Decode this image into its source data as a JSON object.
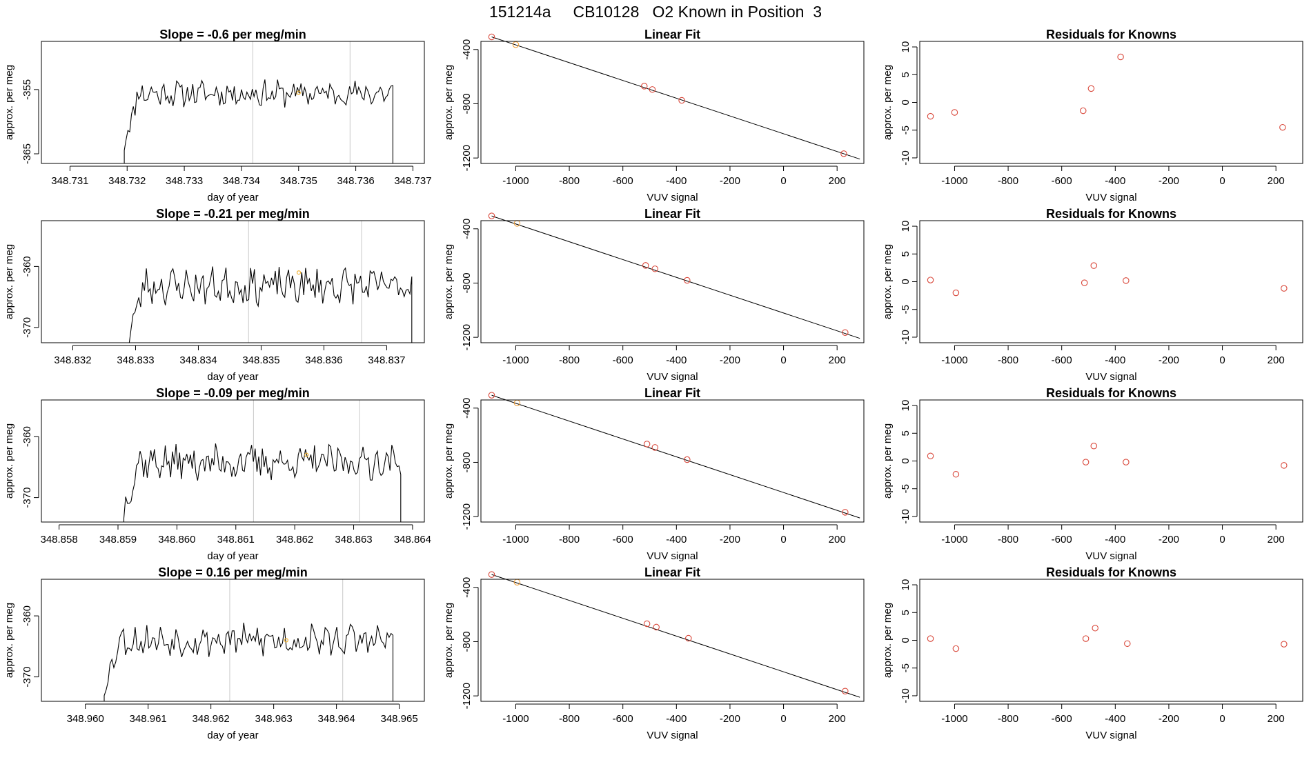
{
  "figure": {
    "title": "151214a     CB10128   O2 Known in Position  3"
  },
  "chart_data": [
    {
      "type": "line",
      "row": 1,
      "panel": "time-series",
      "title": "Slope =  -0.6  per meg/min",
      "xlabel": "day of year",
      "ylabel": "approx. per meg",
      "xlim": [
        348.7305,
        348.7372
      ],
      "ylim": [
        -366.5,
        -347.5
      ],
      "xticks": [
        348.731,
        348.732,
        348.733,
        348.734,
        348.735,
        348.736,
        348.737
      ],
      "xtick_labels": [
        "348.731",
        "348.732",
        "348.733",
        "348.734",
        "348.735",
        "348.736",
        "348.737"
      ],
      "yticks": [
        -355,
        -365
      ],
      "ytick_labels": [
        "-355",
        "-365"
      ],
      "vlines": [
        348.7342,
        348.7359
      ],
      "highlight_point": {
        "x": 348.735,
        "y": -355.5
      },
      "series": [
        {
          "start": 348.73195,
          "end": 348.73665,
          "n": 150,
          "baseline": -355.6,
          "noise": 1.7,
          "seed": 11
        }
      ]
    },
    {
      "type": "scatter",
      "row": 1,
      "panel": "linear-fit",
      "title": "Linear Fit",
      "xlabel": "VUV signal",
      "ylabel": "approx. per meg",
      "xlim": [
        -1130,
        300
      ],
      "ylim": [
        -1240,
        -340
      ],
      "xticks": [
        -1000,
        -800,
        -600,
        -400,
        -200,
        0,
        200
      ],
      "xtick_labels": [
        "-1000",
        "-800",
        "-600",
        "-400",
        "-200",
        "0",
        "200"
      ],
      "yticks": [
        -400,
        -800,
        -1200
      ],
      "ytick_labels": [
        "-400",
        "-800",
        "-1200"
      ],
      "fit_line": {
        "x1": -1090,
        "y1": -307,
        "x2": 285,
        "y2": -1208
      },
      "points": [
        {
          "x": -1090,
          "y": -307,
          "color": "red"
        },
        {
          "x": -1000,
          "y": -364,
          "color": "orange"
        },
        {
          "x": -520,
          "y": -670,
          "color": "red"
        },
        {
          "x": -490,
          "y": -695,
          "color": "red"
        },
        {
          "x": -380,
          "y": -775,
          "color": "red"
        },
        {
          "x": 225,
          "y": -1168,
          "color": "red"
        }
      ]
    },
    {
      "type": "scatter",
      "row": 1,
      "panel": "residuals",
      "title": "Residuals for Knowns",
      "xlabel": "VUV signal",
      "ylabel": "approx. per meg",
      "xlim": [
        -1130,
        300
      ],
      "ylim": [
        -11,
        11
      ],
      "xticks": [
        -1000,
        -800,
        -600,
        -400,
        -200,
        0,
        200
      ],
      "xtick_labels": [
        "-1000",
        "-800",
        "-600",
        "-400",
        "-200",
        "0",
        "200"
      ],
      "yticks": [
        10,
        5,
        0,
        -5,
        -10
      ],
      "ytick_labels": [
        "10",
        "5",
        "0",
        "-5",
        "-10"
      ],
      "points": [
        {
          "x": -1090,
          "y": -2.5
        },
        {
          "x": -1000,
          "y": -1.8
        },
        {
          "x": -520,
          "y": -1.5
        },
        {
          "x": -490,
          "y": 2.5
        },
        {
          "x": -380,
          "y": 8.2
        },
        {
          "x": 225,
          "y": -4.5
        }
      ]
    },
    {
      "type": "line",
      "row": 2,
      "panel": "time-series",
      "title": "Slope =  -0.21  per meg/min",
      "xlabel": "day of year",
      "ylabel": "approx. per meg",
      "xlim": [
        348.8315,
        348.8376
      ],
      "ylim": [
        -372.5,
        -352.5
      ],
      "xticks": [
        348.832,
        348.833,
        348.834,
        348.835,
        348.836,
        348.837
      ],
      "xtick_labels": [
        "348.832",
        "348.833",
        "348.834",
        "348.835",
        "348.836",
        "348.837"
      ],
      "yticks": [
        -360,
        -370
      ],
      "ytick_labels": [
        "-360",
        "-370"
      ],
      "vlines": [
        348.8348,
        348.8366
      ],
      "highlight_point": {
        "x": 348.8356,
        "y": -361
      },
      "series": [
        {
          "start": 348.8329,
          "end": 348.8374,
          "n": 150,
          "baseline": -363.2,
          "noise": 2.5,
          "seed": 23
        }
      ]
    },
    {
      "type": "scatter",
      "row": 2,
      "panel": "linear-fit",
      "title": "Linear Fit",
      "xlabel": "VUV signal",
      "ylabel": "approx. per meg",
      "xlim": [
        -1130,
        300
      ],
      "ylim": [
        -1240,
        -340
      ],
      "xticks": [
        -1000,
        -800,
        -600,
        -400,
        -200,
        0,
        200
      ],
      "xtick_labels": [
        "-1000",
        "-800",
        "-600",
        "-400",
        "-200",
        "0",
        "200"
      ],
      "yticks": [
        -400,
        -800,
        -1200
      ],
      "ytick_labels": [
        "-400",
        "-800",
        "-1200"
      ],
      "fit_line": {
        "x1": -1090,
        "y1": -305,
        "x2": 285,
        "y2": -1208
      },
      "points": [
        {
          "x": -1090,
          "y": -305,
          "color": "red"
        },
        {
          "x": -995,
          "y": -360,
          "color": "orange"
        },
        {
          "x": -515,
          "y": -670,
          "color": "red"
        },
        {
          "x": -480,
          "y": -695,
          "color": "red"
        },
        {
          "x": -360,
          "y": -780,
          "color": "red"
        },
        {
          "x": 230,
          "y": -1165,
          "color": "red"
        }
      ]
    },
    {
      "type": "scatter",
      "row": 2,
      "panel": "residuals",
      "title": "Residuals for Knowns",
      "xlabel": "VUV signal",
      "ylabel": "approx. per meg",
      "xlim": [
        -1130,
        300
      ],
      "ylim": [
        -11,
        11
      ],
      "xticks": [
        -1000,
        -800,
        -600,
        -400,
        -200,
        0,
        200
      ],
      "xtick_labels": [
        "-1000",
        "-800",
        "-600",
        "-400",
        "-200",
        "0",
        "200"
      ],
      "yticks": [
        10,
        5,
        0,
        -5,
        -10
      ],
      "ytick_labels": [
        "10",
        "5",
        "0",
        "-5",
        "-10"
      ],
      "points": [
        {
          "x": -1090,
          "y": 0.3
        },
        {
          "x": -995,
          "y": -2.0
        },
        {
          "x": -515,
          "y": -0.2
        },
        {
          "x": -480,
          "y": 2.9
        },
        {
          "x": -360,
          "y": 0.2
        },
        {
          "x": 230,
          "y": -1.2
        }
      ]
    },
    {
      "type": "line",
      "row": 3,
      "panel": "time-series",
      "title": "Slope =  -0.09  per meg/min",
      "xlabel": "day of year",
      "ylabel": "approx. per meg",
      "xlim": [
        348.8577,
        348.8642
      ],
      "ylim": [
        -374,
        -354
      ],
      "xticks": [
        348.858,
        348.859,
        348.86,
        348.861,
        348.862,
        348.863,
        348.864
      ],
      "xtick_labels": [
        "348.858",
        "348.859",
        "348.860",
        "348.861",
        "348.862",
        "348.863",
        "348.864"
      ],
      "yticks": [
        -360,
        -370
      ],
      "ytick_labels": [
        "-360",
        "-370"
      ],
      "vlines": [
        348.8613,
        348.8631
      ],
      "highlight_point": {
        "x": 348.8622,
        "y": -363
      },
      "series": [
        {
          "start": 348.8591,
          "end": 348.8638,
          "n": 155,
          "baseline": -364.2,
          "noise": 2.4,
          "seed": 37
        }
      ]
    },
    {
      "type": "scatter",
      "row": 3,
      "panel": "linear-fit",
      "title": "Linear Fit",
      "xlabel": "VUV signal",
      "ylabel": "approx. per meg",
      "xlim": [
        -1130,
        300
      ],
      "ylim": [
        -1240,
        -340
      ],
      "xticks": [
        -1000,
        -800,
        -600,
        -400,
        -200,
        0,
        200
      ],
      "xtick_labels": [
        "-1000",
        "-800",
        "-600",
        "-400",
        "-200",
        "0",
        "200"
      ],
      "yticks": [
        -400,
        -800,
        -1200
      ],
      "ytick_labels": [
        "-400",
        "-800",
        "-1200"
      ],
      "fit_line": {
        "x1": -1090,
        "y1": -305,
        "x2": 285,
        "y2": -1210
      },
      "points": [
        {
          "x": -1090,
          "y": -305,
          "color": "red"
        },
        {
          "x": -995,
          "y": -362,
          "color": "orange"
        },
        {
          "x": -510,
          "y": -665,
          "color": "red"
        },
        {
          "x": -480,
          "y": -690,
          "color": "red"
        },
        {
          "x": -360,
          "y": -780,
          "color": "red"
        },
        {
          "x": 230,
          "y": -1168,
          "color": "red"
        }
      ]
    },
    {
      "type": "scatter",
      "row": 3,
      "panel": "residuals",
      "title": "Residuals for Knowns",
      "xlabel": "VUV signal",
      "ylabel": "approx. per meg",
      "xlim": [
        -1130,
        300
      ],
      "ylim": [
        -11,
        11
      ],
      "xticks": [
        -1000,
        -800,
        -600,
        -400,
        -200,
        0,
        200
      ],
      "xtick_labels": [
        "-1000",
        "-800",
        "-600",
        "-400",
        "-200",
        "0",
        "200"
      ],
      "yticks": [
        10,
        5,
        0,
        -5,
        -10
      ],
      "ytick_labels": [
        "10",
        "5",
        "0",
        "-5",
        "-10"
      ],
      "points": [
        {
          "x": -1090,
          "y": 0.9
        },
        {
          "x": -995,
          "y": -2.4
        },
        {
          "x": -510,
          "y": -0.2
        },
        {
          "x": -480,
          "y": 2.7
        },
        {
          "x": -360,
          "y": -0.2
        },
        {
          "x": 230,
          "y": -0.8
        }
      ]
    },
    {
      "type": "line",
      "row": 4,
      "panel": "time-series",
      "title": "Slope =  0.16  per meg/min",
      "xlabel": "day of year",
      "ylabel": "approx. per meg",
      "xlim": [
        348.9593,
        348.9654
      ],
      "ylim": [
        -374,
        -354
      ],
      "xticks": [
        348.96,
        348.961,
        348.962,
        348.963,
        348.964,
        348.965
      ],
      "xtick_labels": [
        "348.960",
        "348.961",
        "348.962",
        "348.963",
        "348.964",
        "348.965"
      ],
      "yticks": [
        -360,
        -370
      ],
      "ytick_labels": [
        "-360",
        "-370"
      ],
      "vlines": [
        348.9623,
        348.9641
      ],
      "highlight_point": {
        "x": 348.9632,
        "y": -364
      },
      "series": [
        {
          "start": 348.9603,
          "end": 348.9649,
          "n": 150,
          "baseline": -364.0,
          "noise": 2.2,
          "seed": 53
        }
      ]
    },
    {
      "type": "scatter",
      "row": 4,
      "panel": "linear-fit",
      "title": "Linear Fit",
      "xlabel": "VUV signal",
      "ylabel": "approx. per meg",
      "xlim": [
        -1130,
        300
      ],
      "ylim": [
        -1240,
        -340
      ],
      "xticks": [
        -1000,
        -800,
        -600,
        -400,
        -200,
        0,
        200
      ],
      "xtick_labels": [
        "-1000",
        "-800",
        "-600",
        "-400",
        "-200",
        "0",
        "200"
      ],
      "yticks": [
        -400,
        -800,
        -1200
      ],
      "ytick_labels": [
        "-400",
        "-800",
        "-1200"
      ],
      "fit_line": {
        "x1": -1090,
        "y1": -305,
        "x2": 285,
        "y2": -1210
      },
      "points": [
        {
          "x": -1090,
          "y": -305,
          "color": "red"
        },
        {
          "x": -995,
          "y": -362,
          "color": "orange"
        },
        {
          "x": -510,
          "y": -668,
          "color": "red"
        },
        {
          "x": -475,
          "y": -693,
          "color": "red"
        },
        {
          "x": -355,
          "y": -775,
          "color": "red"
        },
        {
          "x": 230,
          "y": -1165,
          "color": "red"
        }
      ]
    },
    {
      "type": "scatter",
      "row": 4,
      "panel": "residuals",
      "title": "Residuals for Knowns",
      "xlabel": "VUV signal",
      "ylabel": "approx. per meg",
      "xlim": [
        -1130,
        300
      ],
      "ylim": [
        -11,
        11
      ],
      "xticks": [
        -1000,
        -800,
        -600,
        -400,
        -200,
        0,
        200
      ],
      "xtick_labels": [
        "-1000",
        "-800",
        "-600",
        "-400",
        "-200",
        "0",
        "200"
      ],
      "yticks": [
        10,
        5,
        0,
        -5,
        -10
      ],
      "ytick_labels": [
        "10",
        "5",
        "0",
        "-5",
        "-10"
      ],
      "points": [
        {
          "x": -1090,
          "y": 0.3
        },
        {
          "x": -995,
          "y": -1.5
        },
        {
          "x": -510,
          "y": 0.3
        },
        {
          "x": -475,
          "y": 2.2
        },
        {
          "x": -355,
          "y": -0.6
        },
        {
          "x": 230,
          "y": -0.7
        }
      ]
    }
  ],
  "colors": {
    "axis": "#000000",
    "line": "#000000",
    "vline": "#c8c8c8",
    "point_red": "#d9483b",
    "point_orange": "#f2a23c",
    "highlight": "#f2b437",
    "background": "#ffffff"
  }
}
